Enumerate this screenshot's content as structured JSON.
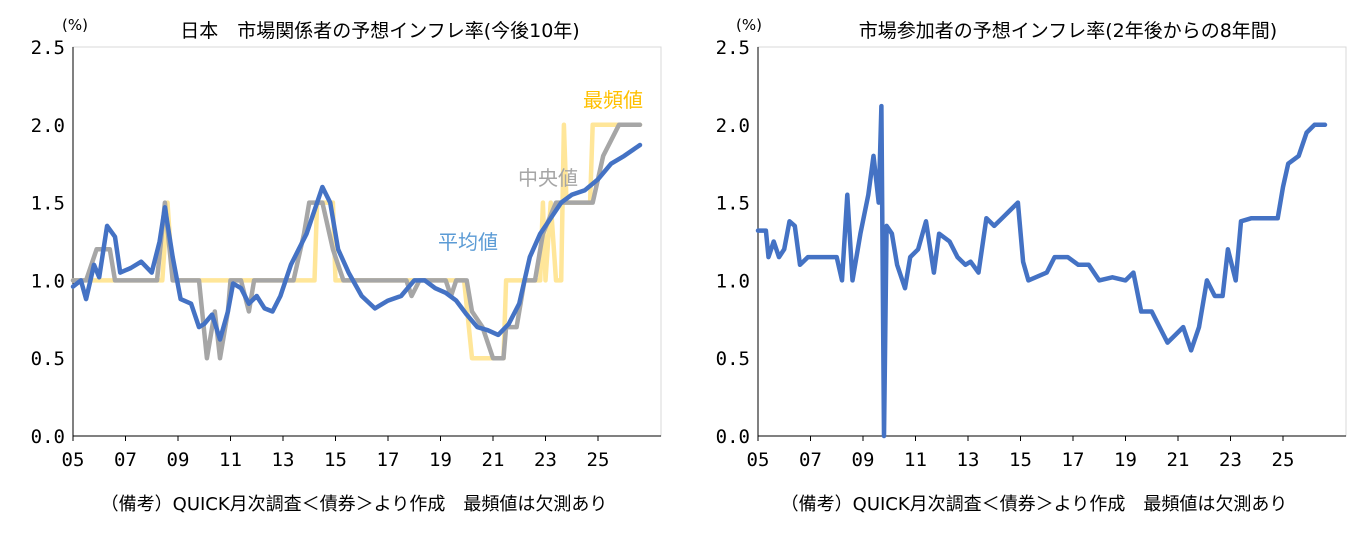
{
  "chart_data": [
    {
      "type": "line",
      "title": "日本　市場関係者の予想インフレ率(今後10年)",
      "unit": "(%)",
      "note": "（備考）QUICK月次調査＜債券＞より作成　最頻値は欠測あり",
      "ylim": [
        0,
        2.5
      ],
      "yticks": [
        "0.0",
        "0.5",
        "1.0",
        "1.5",
        "2.0",
        "2.5"
      ],
      "xlim": [
        2005,
        2027.4
      ],
      "xticks": [
        "05",
        "07",
        "09",
        "11",
        "13",
        "15",
        "17",
        "19",
        "21",
        "23",
        "25"
      ],
      "series": [
        {
          "name": "最頻値",
          "color": "#FFE699",
          "label_color": "#FFC000",
          "points": [
            [
              2005.0,
              1.0
            ],
            [
              2008.4,
              1.0
            ],
            [
              2008.6,
              1.5
            ],
            [
              2008.8,
              1.0
            ],
            [
              2014.2,
              1.0
            ],
            [
              2014.3,
              1.5
            ],
            [
              2014.9,
              1.5
            ],
            [
              2015.0,
              1.0
            ],
            [
              2019.9,
              1.0
            ],
            [
              2020.2,
              0.5
            ],
            [
              2021.4,
              0.5
            ],
            [
              2021.5,
              1.0
            ],
            [
              2022.8,
              1.0
            ],
            [
              2022.9,
              1.5
            ],
            [
              2023.0,
              1.0
            ],
            [
              2023.2,
              1.5
            ],
            [
              2023.4,
              1.0
            ],
            [
              2023.6,
              1.0
            ],
            [
              2023.7,
              2.0
            ],
            [
              2023.8,
              1.5
            ],
            [
              2024.7,
              1.5
            ],
            [
              2024.8,
              2.0
            ],
            [
              2026.6,
              2.0
            ]
          ]
        },
        {
          "name": "中央値",
          "color": "#A6A6A6",
          "label_color": "#A6A6A6",
          "points": [
            [
              2005.0,
              1.0
            ],
            [
              2005.5,
              1.0
            ],
            [
              2005.9,
              1.2
            ],
            [
              2006.4,
              1.2
            ],
            [
              2006.6,
              1.0
            ],
            [
              2008.2,
              1.0
            ],
            [
              2008.5,
              1.5
            ],
            [
              2008.8,
              1.0
            ],
            [
              2009.8,
              1.0
            ],
            [
              2010.1,
              0.5
            ],
            [
              2010.4,
              0.8
            ],
            [
              2010.6,
              0.5
            ],
            [
              2010.9,
              0.8
            ],
            [
              2011.0,
              1.0
            ],
            [
              2011.4,
              1.0
            ],
            [
              2011.7,
              0.8
            ],
            [
              2011.9,
              1.0
            ],
            [
              2013.4,
              1.0
            ],
            [
              2013.8,
              1.3
            ],
            [
              2014.0,
              1.5
            ],
            [
              2014.5,
              1.5
            ],
            [
              2014.9,
              1.2
            ],
            [
              2015.3,
              1.0
            ],
            [
              2017.7,
              1.0
            ],
            [
              2017.9,
              0.9
            ],
            [
              2018.2,
              1.0
            ],
            [
              2019.2,
              1.0
            ],
            [
              2019.4,
              0.9
            ],
            [
              2019.6,
              1.0
            ],
            [
              2020.0,
              1.0
            ],
            [
              2020.2,
              0.8
            ],
            [
              2020.6,
              0.7
            ],
            [
              2021.0,
              0.5
            ],
            [
              2021.4,
              0.5
            ],
            [
              2021.5,
              0.7
            ],
            [
              2021.9,
              0.7
            ],
            [
              2022.2,
              1.0
            ],
            [
              2022.6,
              1.0
            ],
            [
              2022.9,
              1.3
            ],
            [
              2023.4,
              1.5
            ],
            [
              2024.8,
              1.5
            ],
            [
              2025.2,
              1.8
            ],
            [
              2025.8,
              2.0
            ],
            [
              2026.6,
              2.0
            ]
          ]
        },
        {
          "name": "平均値",
          "color": "#4472C4",
          "label_color": "#5B9BD5",
          "points": [
            [
              2005.0,
              0.96
            ],
            [
              2005.3,
              1.0
            ],
            [
              2005.5,
              0.88
            ],
            [
              2005.8,
              1.1
            ],
            [
              2006.0,
              1.02
            ],
            [
              2006.3,
              1.35
            ],
            [
              2006.6,
              1.28
            ],
            [
              2006.8,
              1.05
            ],
            [
              2007.2,
              1.08
            ],
            [
              2007.6,
              1.12
            ],
            [
              2008.0,
              1.05
            ],
            [
              2008.3,
              1.25
            ],
            [
              2008.5,
              1.47
            ],
            [
              2008.8,
              1.15
            ],
            [
              2009.1,
              0.88
            ],
            [
              2009.5,
              0.85
            ],
            [
              2009.8,
              0.7
            ],
            [
              2010.0,
              0.72
            ],
            [
              2010.3,
              0.78
            ],
            [
              2010.6,
              0.62
            ],
            [
              2010.9,
              0.8
            ],
            [
              2011.1,
              0.98
            ],
            [
              2011.4,
              0.95
            ],
            [
              2011.7,
              0.85
            ],
            [
              2012.0,
              0.9
            ],
            [
              2012.3,
              0.82
            ],
            [
              2012.6,
              0.8
            ],
            [
              2012.9,
              0.9
            ],
            [
              2013.3,
              1.1
            ],
            [
              2013.6,
              1.2
            ],
            [
              2013.9,
              1.3
            ],
            [
              2014.2,
              1.45
            ],
            [
              2014.5,
              1.6
            ],
            [
              2014.8,
              1.5
            ],
            [
              2015.1,
              1.2
            ],
            [
              2015.5,
              1.05
            ],
            [
              2016.0,
              0.9
            ],
            [
              2016.5,
              0.82
            ],
            [
              2017.0,
              0.87
            ],
            [
              2017.5,
              0.9
            ],
            [
              2018.0,
              1.0
            ],
            [
              2018.4,
              1.0
            ],
            [
              2018.8,
              0.95
            ],
            [
              2019.2,
              0.92
            ],
            [
              2019.6,
              0.87
            ],
            [
              2020.0,
              0.78
            ],
            [
              2020.4,
              0.7
            ],
            [
              2020.8,
              0.68
            ],
            [
              2021.2,
              0.65
            ],
            [
              2021.6,
              0.72
            ],
            [
              2022.0,
              0.85
            ],
            [
              2022.4,
              1.15
            ],
            [
              2022.8,
              1.3
            ],
            [
              2023.2,
              1.4
            ],
            [
              2023.6,
              1.5
            ],
            [
              2024.0,
              1.55
            ],
            [
              2024.5,
              1.58
            ],
            [
              2025.0,
              1.65
            ],
            [
              2025.5,
              1.75
            ],
            [
              2026.0,
              1.8
            ],
            [
              2026.6,
              1.87
            ]
          ]
        }
      ]
    },
    {
      "type": "line",
      "title": "市場参加者の予想インフレ率(2年後からの8年間)",
      "unit": "(%)",
      "note": "（備考）QUICK月次調査＜債券＞より作成　最頻値は欠測あり",
      "ylim": [
        0,
        2.5
      ],
      "yticks": [
        "0.0",
        "0.5",
        "1.0",
        "1.5",
        "2.0",
        "2.5"
      ],
      "xlim": [
        2005,
        2027.4
      ],
      "xticks": [
        "05",
        "07",
        "09",
        "11",
        "13",
        "15",
        "17",
        "19",
        "21",
        "23",
        "25"
      ],
      "series": [
        {
          "color": "#4472C4",
          "points": [
            [
              2005.0,
              1.32
            ],
            [
              2005.3,
              1.32
            ],
            [
              2005.4,
              1.15
            ],
            [
              2005.6,
              1.25
            ],
            [
              2005.8,
              1.15
            ],
            [
              2006.0,
              1.2
            ],
            [
              2006.2,
              1.38
            ],
            [
              2006.4,
              1.35
            ],
            [
              2006.6,
              1.1
            ],
            [
              2006.9,
              1.15
            ],
            [
              2007.5,
              1.15
            ],
            [
              2008.0,
              1.15
            ],
            [
              2008.2,
              1.0
            ],
            [
              2008.4,
              1.55
            ],
            [
              2008.6,
              1.0
            ],
            [
              2008.9,
              1.3
            ],
            [
              2009.2,
              1.55
            ],
            [
              2009.4,
              1.8
            ],
            [
              2009.6,
              1.5
            ],
            [
              2009.7,
              2.12
            ],
            [
              2009.8,
              0.0
            ],
            [
              2009.9,
              1.35
            ],
            [
              2010.1,
              1.3
            ],
            [
              2010.3,
              1.1
            ],
            [
              2010.6,
              0.95
            ],
            [
              2010.8,
              1.15
            ],
            [
              2011.1,
              1.2
            ],
            [
              2011.4,
              1.38
            ],
            [
              2011.7,
              1.05
            ],
            [
              2011.9,
              1.3
            ],
            [
              2012.3,
              1.25
            ],
            [
              2012.6,
              1.15
            ],
            [
              2012.9,
              1.1
            ],
            [
              2013.1,
              1.12
            ],
            [
              2013.4,
              1.05
            ],
            [
              2013.7,
              1.4
            ],
            [
              2014.0,
              1.35
            ],
            [
              2014.3,
              1.4
            ],
            [
              2014.6,
              1.45
            ],
            [
              2014.9,
              1.5
            ],
            [
              2015.1,
              1.12
            ],
            [
              2015.3,
              1.0
            ],
            [
              2016.0,
              1.05
            ],
            [
              2016.3,
              1.15
            ],
            [
              2016.8,
              1.15
            ],
            [
              2017.2,
              1.1
            ],
            [
              2017.6,
              1.1
            ],
            [
              2018.0,
              1.0
            ],
            [
              2018.5,
              1.02
            ],
            [
              2019.0,
              1.0
            ],
            [
              2019.3,
              1.05
            ],
            [
              2019.6,
              0.8
            ],
            [
              2020.0,
              0.8
            ],
            [
              2020.3,
              0.7
            ],
            [
              2020.6,
              0.6
            ],
            [
              2020.9,
              0.65
            ],
            [
              2021.2,
              0.7
            ],
            [
              2021.5,
              0.55
            ],
            [
              2021.8,
              0.7
            ],
            [
              2022.1,
              1.0
            ],
            [
              2022.4,
              0.9
            ],
            [
              2022.7,
              0.9
            ],
            [
              2022.9,
              1.2
            ],
            [
              2023.2,
              1.0
            ],
            [
              2023.4,
              1.38
            ],
            [
              2023.8,
              1.4
            ],
            [
              2024.5,
              1.4
            ],
            [
              2024.8,
              1.4
            ],
            [
              2025.0,
              1.6
            ],
            [
              2025.2,
              1.75
            ],
            [
              2025.6,
              1.8
            ],
            [
              2025.9,
              1.95
            ],
            [
              2026.2,
              2.0
            ],
            [
              2026.6,
              2.0
            ]
          ]
        }
      ]
    }
  ]
}
